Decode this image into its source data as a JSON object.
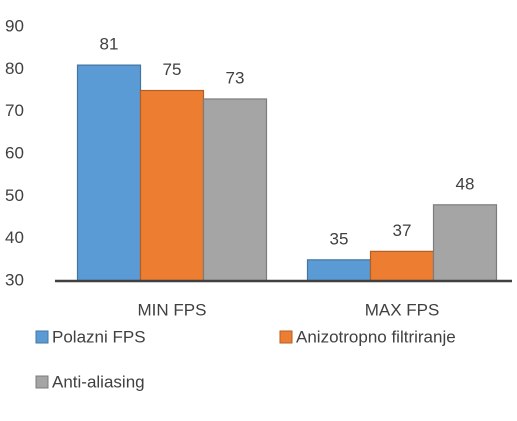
{
  "chart_data": {
    "type": "bar",
    "categories": [
      "MIN FPS",
      "MAX FPS"
    ],
    "series": [
      {
        "name": "Polazni FPS",
        "color": "#5b9bd5",
        "values": [
          81,
          35
        ]
      },
      {
        "name": "Anizotropno filtriranje",
        "color": "#ed7d31",
        "values": [
          75,
          37
        ]
      },
      {
        "name": "Anti-aliasing",
        "color": "#a5a5a5",
        "values": [
          73,
          48
        ]
      }
    ],
    "ylim": [
      30,
      90
    ],
    "yticks": [
      30,
      40,
      50,
      60,
      70,
      80,
      90
    ],
    "grid": false,
    "legend": "bottom"
  }
}
